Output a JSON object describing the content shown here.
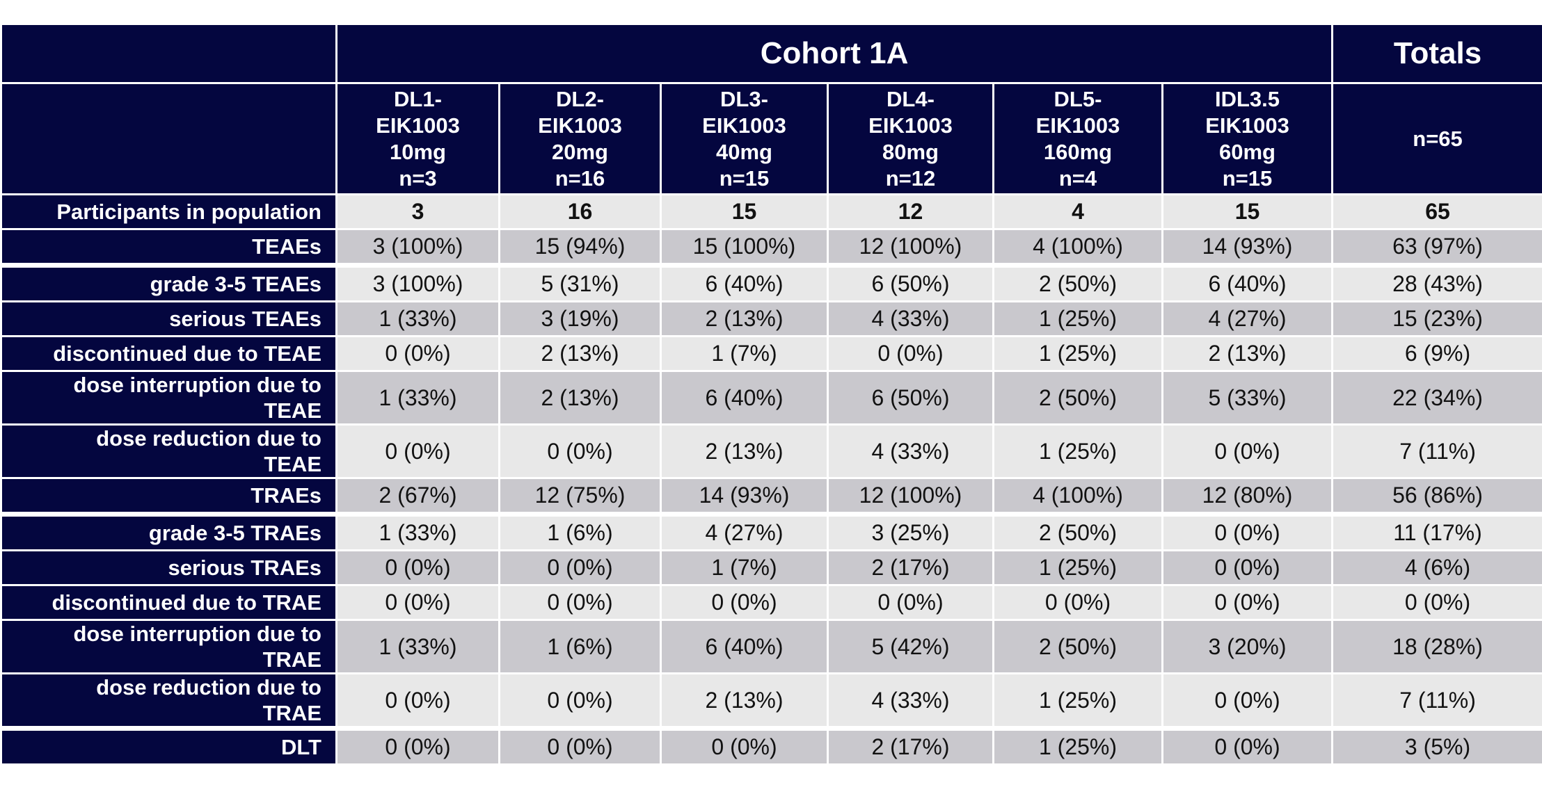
{
  "header": {
    "cohort_title": "Cohort 1A",
    "totals_title": "Totals",
    "columns": [
      {
        "lines": [
          "DL1-",
          "EIK1003",
          "10mg",
          "n=3"
        ]
      },
      {
        "lines": [
          "DL2-",
          "EIK1003",
          "20mg",
          "n=16"
        ]
      },
      {
        "lines": [
          "DL3-",
          "EIK1003",
          "40mg",
          "n=15"
        ]
      },
      {
        "lines": [
          "DL4-",
          "EIK1003",
          "80mg",
          "n=12"
        ]
      },
      {
        "lines": [
          "DL5-",
          "EIK1003",
          "160mg",
          "n=4"
        ]
      },
      {
        "lines": [
          "IDL3.5",
          "EIK1003",
          "60mg",
          "n=15"
        ]
      }
    ],
    "totals_n": "n=65"
  },
  "rows": [
    {
      "label": [
        "Participants in population"
      ],
      "values": [
        "3",
        "16",
        "15",
        "12",
        "4",
        "15",
        "65"
      ]
    },
    {
      "label": [
        "TEAEs"
      ],
      "values": [
        "3 (100%)",
        "15 (94%)",
        "15 (100%)",
        "12 (100%)",
        "4 (100%)",
        "14 (93%)",
        "63 (97%)"
      ]
    },
    {
      "label": [
        "grade 3-5 TEAEs"
      ],
      "values": [
        "3 (100%)",
        "5 (31%)",
        "6 (40%)",
        "6 (50%)",
        "2 (50%)",
        "6 (40%)",
        "28 (43%)"
      ]
    },
    {
      "label": [
        "serious TEAEs"
      ],
      "values": [
        "1 (33%)",
        "3 (19%)",
        "2 (13%)",
        "4 (33%)",
        "1 (25%)",
        "4 (27%)",
        "15 (23%)"
      ]
    },
    {
      "label": [
        "discontinued due to TEAE"
      ],
      "values": [
        "0 (0%)",
        "2 (13%)",
        "1 (7%)",
        "0 (0%)",
        "1 (25%)",
        "2 (13%)",
        "6 (9%)"
      ]
    },
    {
      "label": [
        "dose interruption due to",
        "TEAE"
      ],
      "values": [
        "1 (33%)",
        "2 (13%)",
        "6 (40%)",
        "6 (50%)",
        "2 (50%)",
        "5 (33%)",
        "22 (34%)"
      ]
    },
    {
      "label": [
        "dose reduction due to",
        "TEAE"
      ],
      "values": [
        "0 (0%)",
        "0 (0%)",
        "2 (13%)",
        "4 (33%)",
        "1 (25%)",
        "0 (0%)",
        "7 (11%)"
      ]
    },
    {
      "label": [
        "TRAEs"
      ],
      "values": [
        "2 (67%)",
        "12 (75%)",
        "14 (93%)",
        "12 (100%)",
        "4 (100%)",
        "12 (80%)",
        "56 (86%)"
      ]
    },
    {
      "label": [
        "grade 3-5 TRAEs"
      ],
      "values": [
        "1 (33%)",
        "1 (6%)",
        "4 (27%)",
        "3 (25%)",
        "2 (50%)",
        "0 (0%)",
        "11 (17%)"
      ]
    },
    {
      "label": [
        "serious TRAEs"
      ],
      "values": [
        "0 (0%)",
        "0 (0%)",
        "1 (7%)",
        "2 (17%)",
        "1 (25%)",
        "0 (0%)",
        "4 (6%)"
      ]
    },
    {
      "label": [
        "discontinued due to TRAE"
      ],
      "values": [
        "0 (0%)",
        "0 (0%)",
        "0 (0%)",
        "0 (0%)",
        "0 (0%)",
        "0 (0%)",
        "0 (0%)"
      ]
    },
    {
      "label": [
        "dose interruption due to",
        "TRAE"
      ],
      "values": [
        "1 (33%)",
        "1 (6%)",
        "6 (40%)",
        "5 (42%)",
        "2 (50%)",
        "3 (20%)",
        "18 (28%)"
      ]
    },
    {
      "label": [
        "dose reduction due to",
        "TRAE"
      ],
      "values": [
        "0 (0%)",
        "0 (0%)",
        "2 (13%)",
        "4 (33%)",
        "1 (25%)",
        "0 (0%)",
        "7 (11%)"
      ]
    },
    {
      "label": [
        "DLT"
      ],
      "values": [
        "0 (0%)",
        "0 (0%)",
        "0 (0%)",
        "2 (17%)",
        "1 (25%)",
        "0 (0%)",
        "3 (5%)"
      ]
    }
  ],
  "colors": {
    "navy": "#04063f",
    "light_row": "#e8e8e8",
    "dark_row": "#c9c8cd"
  }
}
